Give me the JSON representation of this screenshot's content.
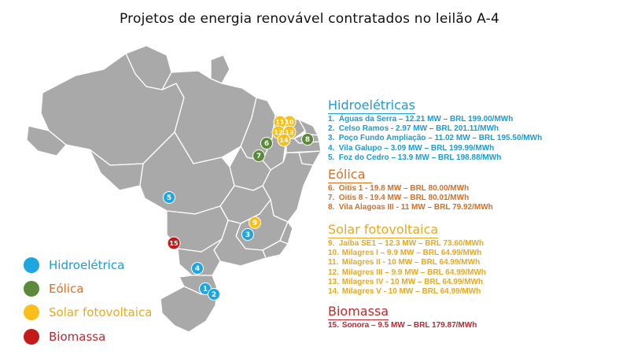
{
  "title": "Projetos de energia renovável contratados no leilão A-4",
  "colors": {
    "hydro": "#1ea6e0",
    "wind": "#5a8a3a",
    "solar": "#fbbf1c",
    "biomass": "#c31a1a",
    "map_fill": "#a9a9a9",
    "map_stroke": "#ffffff",
    "hydro_text": "#1d9bd7",
    "wind_text": "#d86f25",
    "solar_text": "#e8a823",
    "biomass_text": "#c0292f"
  },
  "legend": [
    {
      "label": "Hidroelétrica",
      "type": "hydro"
    },
    {
      "label": "Eólica",
      "type": "wind"
    },
    {
      "label": "Solar fotovoltaica",
      "type": "solar"
    },
    {
      "label": "Biomassa",
      "type": "biomass"
    }
  ],
  "markers": [
    {
      "num": "1",
      "type": "hydro"
    },
    {
      "num": "2",
      "type": "hydro"
    },
    {
      "num": "3",
      "type": "hydro"
    },
    {
      "num": "4",
      "type": "hydro"
    },
    {
      "num": "5",
      "type": "hydro"
    },
    {
      "num": "6",
      "type": "wind"
    },
    {
      "num": "7",
      "type": "wind"
    },
    {
      "num": "8",
      "type": "wind"
    },
    {
      "num": "9",
      "type": "solar"
    },
    {
      "num": "10",
      "type": "solar"
    },
    {
      "num": "11",
      "type": "solar"
    },
    {
      "num": "12",
      "type": "solar"
    },
    {
      "num": "13",
      "type": "solar"
    },
    {
      "num": "14",
      "type": "solar"
    },
    {
      "num": "15",
      "type": "biomass"
    }
  ],
  "sections": {
    "hydro": {
      "title": "Hidroelétricas",
      "items": [
        {
          "num": "1.",
          "text": "Águas da Serra – 12.21 MW – BRL 199.00/MWh"
        },
        {
          "num": "2.",
          "text": "Celso Ramos -  2.97 MW – BRL 201.11/MWh"
        },
        {
          "num": "3.",
          "text": "Poço Fundo Ampliação – 11.02 MW – BRL 195.50/MWh"
        },
        {
          "num": "4.",
          "text": "Vila Galupo – 3.09 MW – BRL 199.99/MWh"
        },
        {
          "num": "5.",
          "text": "Foz do Cedro – 13.9 MW – BRL 198.88/MWh"
        }
      ]
    },
    "wind": {
      "title": "Eólica",
      "items": [
        {
          "num": "6.",
          "text": "Oitis 1 -  19.8 MW – BRL 80.00/MWh"
        },
        {
          "num": "7.",
          "text": "Oitis 8 -  19.4 MW – BRL 80.01/MWh"
        },
        {
          "num": "8.",
          "text": "Vila Alagoas III - 11 MW – BRL 79.92/MWh"
        }
      ]
    },
    "solar": {
      "title": "Solar fotovoltaica",
      "items": [
        {
          "num": "9.",
          "text": "Jaíba SE1 – 12.3 MW – BRL 73.60/MWh"
        },
        {
          "num": "10.",
          "text": "Milagres I – 9.9 MW – BRL 64.99/MWh"
        },
        {
          "num": "11.",
          "text": "Milagres II - 10 MW – BRL 64.99/MWh"
        },
        {
          "num": "12.",
          "text": "Milagres III – 9.9 MW – BRL 64.99/MWh"
        },
        {
          "num": "13.",
          "text": "Milagres IV - 10 MW – BRL 64.99/MWh"
        },
        {
          "num": "14.",
          "text": "Milagres V - 10 MW – BRL 64.99/MWh"
        }
      ]
    },
    "biomass": {
      "title": "Biomassa",
      "items": [
        {
          "num": "15.",
          "text": "Sonora – 9.5 MW – BRL 179.87/MWh"
        }
      ]
    }
  }
}
